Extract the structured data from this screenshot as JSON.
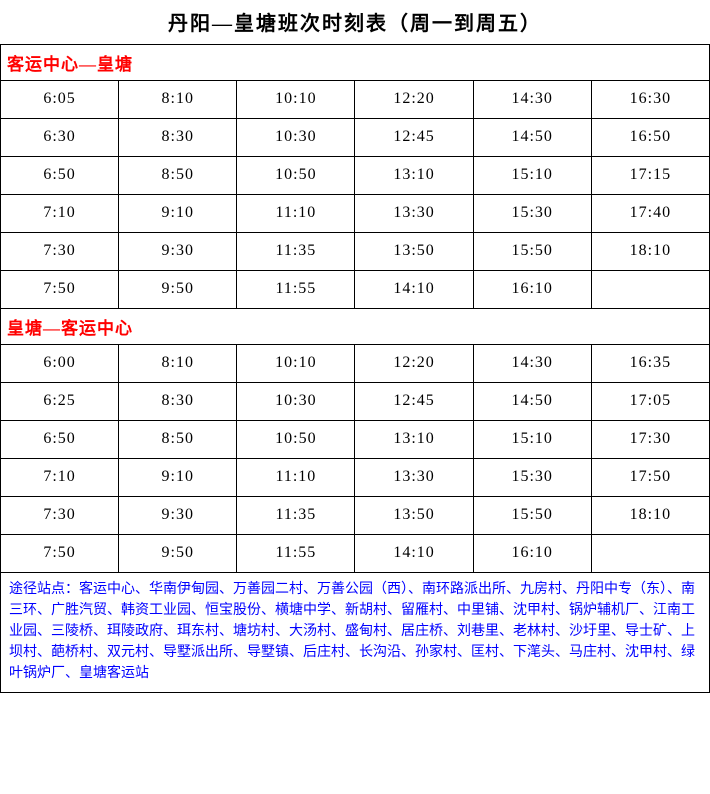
{
  "title": "丹阳—皇塘班次时刻表（周一到周五）",
  "section1": {
    "header": "客运中心—皇塘",
    "rows": [
      [
        "6:05",
        "8:10",
        "10:10",
        "12:20",
        "14:30",
        "16:30"
      ],
      [
        "6:30",
        "8:30",
        "10:30",
        "12:45",
        "14:50",
        "16:50"
      ],
      [
        "6:50",
        "8:50",
        "10:50",
        "13:10",
        "15:10",
        "17:15"
      ],
      [
        "7:10",
        "9:10",
        "11:10",
        "13:30",
        "15:30",
        "17:40"
      ],
      [
        "7:30",
        "9:30",
        "11:35",
        "13:50",
        "15:50",
        "18:10"
      ],
      [
        "7:50",
        "9:50",
        "11:55",
        "14:10",
        "16:10",
        ""
      ]
    ]
  },
  "section2": {
    "header": "皇塘—客运中心",
    "rows": [
      [
        "6:00",
        "8:10",
        "10:10",
        "12:20",
        "14:30",
        "16:35"
      ],
      [
        "6:25",
        "8:30",
        "10:30",
        "12:45",
        "14:50",
        "17:05"
      ],
      [
        "6:50",
        "8:50",
        "10:50",
        "13:10",
        "15:10",
        "17:30"
      ],
      [
        "7:10",
        "9:10",
        "11:10",
        "13:30",
        "15:30",
        "17:50"
      ],
      [
        "7:30",
        "9:30",
        "11:35",
        "13:50",
        "15:50",
        "18:10"
      ],
      [
        "7:50",
        "9:50",
        "11:55",
        "14:10",
        "16:10",
        ""
      ]
    ]
  },
  "footer": "途径站点：客运中心、华南伊甸园、万善园二村、万善公园（西）、南环路派出所、九房村、丹阳中专（东）、南三环、广胜汽贸、韩资工业园、恒宝股份、横塘中学、新胡村、留雁村、中里铺、沈甲村、锅炉辅机厂、江南工业园、三陵桥、珥陵政府、珥东村、塘坊村、大汤村、盛甸村、居庄桥、刘巷里、老林村、沙圩里、导士矿、上坝村、葩桥村、双元村、导墅派出所、导墅镇、后庄村、长沟沿、孙家村、匡村、下滗头、马庄村、沈甲村、绿叶锅炉厂、皇塘客运站",
  "colors": {
    "border": "#000000",
    "section_header": "#ff0000",
    "footer_text": "#0000ff",
    "background": "#ffffff"
  },
  "columns": 6
}
